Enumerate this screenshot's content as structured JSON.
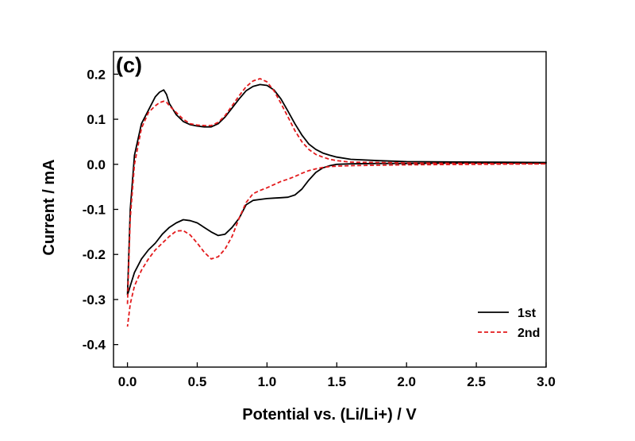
{
  "chart_data": {
    "type": "line",
    "panel_label": "(c)",
    "title": "",
    "xlabel": "Potential vs. (Li/Li+) / V",
    "ylabel": "Current / mA",
    "xlim": [
      -0.1,
      3.0
    ],
    "ylim": [
      -0.45,
      0.25
    ],
    "x_ticks": [
      0.0,
      0.5,
      1.0,
      1.5,
      2.0,
      2.5,
      3.0
    ],
    "x_tick_labels": [
      "0.0",
      "0.5",
      "1.0",
      "1.5",
      "2.0",
      "2.5",
      "3.0"
    ],
    "y_ticks": [
      0.2,
      0.1,
      0.0,
      -0.1,
      -0.2,
      -0.3,
      -0.4
    ],
    "y_tick_labels": [
      "0.2",
      "0.1",
      "0.0",
      "-0.1",
      "-0.2",
      "-0.3",
      "-0.4"
    ],
    "grid": false,
    "legend_position": "bottom-right",
    "series": [
      {
        "name": "1st",
        "color": "#000000",
        "style": "solid",
        "x": [
          0.0,
          0.02,
          0.05,
          0.1,
          0.15,
          0.2,
          0.23,
          0.26,
          0.28,
          0.3,
          0.35,
          0.4,
          0.45,
          0.5,
          0.55,
          0.6,
          0.65,
          0.7,
          0.75,
          0.8,
          0.85,
          0.9,
          0.95,
          1.0,
          1.05,
          1.1,
          1.15,
          1.2,
          1.25,
          1.3,
          1.35,
          1.4,
          1.45,
          1.5,
          1.6,
          1.8,
          2.0,
          2.5,
          3.0,
          3.0,
          2.5,
          2.0,
          1.8,
          1.6,
          1.5,
          1.45,
          1.4,
          1.35,
          1.3,
          1.25,
          1.2,
          1.15,
          1.1,
          1.05,
          1.0,
          0.95,
          0.9,
          0.85,
          0.8,
          0.75,
          0.7,
          0.65,
          0.6,
          0.55,
          0.5,
          0.45,
          0.4,
          0.35,
          0.3,
          0.25,
          0.2,
          0.15,
          0.1,
          0.05,
          0.02,
          0.0
        ],
        "y": [
          -0.29,
          -0.1,
          0.02,
          0.09,
          0.12,
          0.15,
          0.16,
          0.165,
          0.155,
          0.135,
          0.11,
          0.095,
          0.088,
          0.085,
          0.083,
          0.083,
          0.09,
          0.105,
          0.125,
          0.145,
          0.163,
          0.173,
          0.177,
          0.175,
          0.165,
          0.145,
          0.118,
          0.09,
          0.065,
          0.045,
          0.033,
          0.025,
          0.02,
          0.016,
          0.011,
          0.008,
          0.006,
          0.005,
          0.004,
          0.003,
          0.003,
          0.002,
          0.002,
          0.001,
          0.0,
          -0.003,
          -0.008,
          -0.018,
          -0.035,
          -0.055,
          -0.068,
          -0.073,
          -0.074,
          -0.075,
          -0.076,
          -0.078,
          -0.08,
          -0.09,
          -0.12,
          -0.14,
          -0.155,
          -0.158,
          -0.15,
          -0.14,
          -0.13,
          -0.125,
          -0.123,
          -0.13,
          -0.14,
          -0.155,
          -0.175,
          -0.19,
          -0.21,
          -0.24,
          -0.27,
          -0.29
        ]
      },
      {
        "name": "2nd",
        "color": "#e31a1c",
        "style": "dashed",
        "x": [
          0.0,
          0.02,
          0.05,
          0.1,
          0.15,
          0.2,
          0.23,
          0.26,
          0.28,
          0.3,
          0.35,
          0.4,
          0.45,
          0.5,
          0.55,
          0.6,
          0.65,
          0.7,
          0.75,
          0.8,
          0.85,
          0.9,
          0.95,
          1.0,
          1.05,
          1.1,
          1.15,
          1.2,
          1.25,
          1.3,
          1.35,
          1.4,
          1.45,
          1.5,
          1.6,
          1.8,
          2.0,
          2.5,
          3.0,
          3.0,
          2.5,
          2.0,
          1.8,
          1.6,
          1.5,
          1.45,
          1.4,
          1.35,
          1.3,
          1.25,
          1.2,
          1.15,
          1.1,
          1.05,
          1.0,
          0.95,
          0.9,
          0.85,
          0.8,
          0.75,
          0.7,
          0.65,
          0.6,
          0.55,
          0.5,
          0.45,
          0.4,
          0.35,
          0.3,
          0.25,
          0.2,
          0.15,
          0.1,
          0.05,
          0.02,
          0.0
        ],
        "y": [
          -0.31,
          -0.12,
          0.0,
          0.08,
          0.115,
          0.13,
          0.137,
          0.14,
          0.138,
          0.13,
          0.115,
          0.1,
          0.09,
          0.087,
          0.086,
          0.086,
          0.093,
          0.108,
          0.13,
          0.152,
          0.172,
          0.185,
          0.19,
          0.183,
          0.163,
          0.135,
          0.105,
          0.075,
          0.05,
          0.033,
          0.022,
          0.016,
          0.011,
          0.008,
          0.005,
          0.004,
          0.003,
          0.002,
          0.001,
          0.001,
          0.0,
          -0.001,
          -0.002,
          -0.003,
          -0.004,
          -0.005,
          -0.007,
          -0.01,
          -0.014,
          -0.02,
          -0.027,
          -0.033,
          -0.038,
          -0.045,
          -0.052,
          -0.058,
          -0.065,
          -0.085,
          -0.12,
          -0.16,
          -0.188,
          -0.205,
          -0.21,
          -0.195,
          -0.175,
          -0.157,
          -0.147,
          -0.148,
          -0.16,
          -0.175,
          -0.19,
          -0.21,
          -0.235,
          -0.27,
          -0.31,
          -0.36
        ]
      }
    ]
  }
}
